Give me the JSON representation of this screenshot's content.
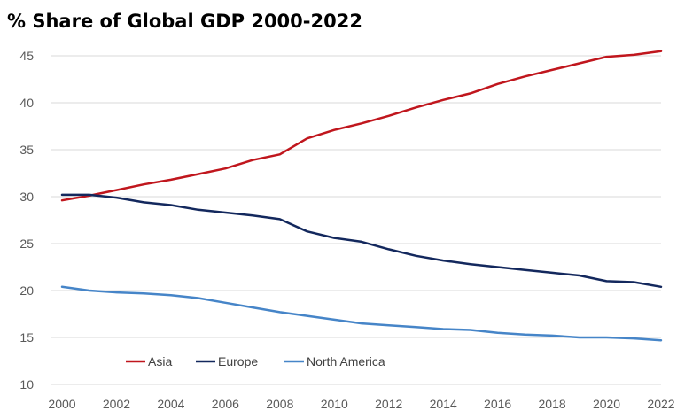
{
  "chart_data": {
    "type": "line",
    "title": "% Share of Global GDP 2000-2022",
    "xlabel": "",
    "ylabel": "",
    "x": [
      2000,
      2001,
      2002,
      2003,
      2004,
      2005,
      2006,
      2007,
      2008,
      2009,
      2010,
      2011,
      2012,
      2013,
      2014,
      2015,
      2016,
      2017,
      2018,
      2019,
      2020,
      2021,
      2022
    ],
    "xticks": [
      "2000",
      "2002",
      "2004",
      "2006",
      "2008",
      "2010",
      "2012",
      "2014",
      "2016",
      "2018",
      "2020",
      "2022"
    ],
    "ylim": [
      10,
      45
    ],
    "yticks": [
      "10",
      "15",
      "20",
      "25",
      "30",
      "35",
      "40",
      "45"
    ],
    "grid": "horizontal",
    "legend_position": "bottom-left",
    "series": [
      {
        "name": "Asia",
        "color": "#c0161d",
        "values": [
          29.6,
          30.1,
          30.7,
          31.3,
          31.8,
          32.4,
          33.0,
          33.9,
          34.5,
          36.2,
          37.1,
          37.8,
          38.6,
          39.5,
          40.3,
          41.0,
          42.0,
          42.8,
          43.5,
          44.2,
          44.9,
          45.1,
          45.5
        ]
      },
      {
        "name": "Europe",
        "color": "#13285d",
        "values": [
          30.2,
          30.2,
          29.9,
          29.4,
          29.1,
          28.6,
          28.3,
          28.0,
          27.6,
          26.3,
          25.6,
          25.2,
          24.4,
          23.7,
          23.2,
          22.8,
          22.5,
          22.2,
          21.9,
          21.6,
          21.0,
          20.9,
          20.4
        ]
      },
      {
        "name": "North America",
        "color": "#4685c8",
        "values": [
          20.4,
          20.0,
          19.8,
          19.7,
          19.5,
          19.2,
          18.7,
          18.2,
          17.7,
          17.3,
          16.9,
          16.5,
          16.3,
          16.1,
          15.9,
          15.8,
          15.5,
          15.3,
          15.2,
          15.0,
          15.0,
          14.9,
          14.7
        ]
      }
    ]
  }
}
